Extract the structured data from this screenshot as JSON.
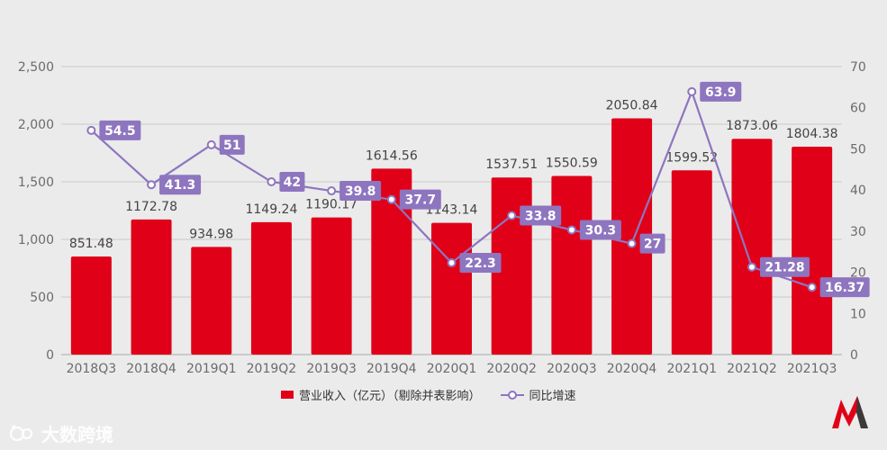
{
  "chart_data": {
    "type": "bar",
    "categories": [
      "2018Q3",
      "2018Q4",
      "2019Q1",
      "2019Q2",
      "2019Q3",
      "2019Q4",
      "2020Q1",
      "2020Q2",
      "2020Q3",
      "2020Q4",
      "2021Q1",
      "2021Q2",
      "2021Q3"
    ],
    "series": [
      {
        "name": "营业收入（亿元）（剔除并表影响）",
        "type": "bar",
        "axis": "left",
        "color": "#e00018",
        "values": [
          851.48,
          1172.78,
          934.98,
          1149.24,
          1190.17,
          1614.56,
          1143.14,
          1537.51,
          1550.59,
          2050.84,
          1599.52,
          1873.06,
          1804.38
        ],
        "labels": [
          "851.48",
          "1172.78",
          "934.98",
          "1149.24",
          "1190.17",
          "1614.56",
          "1143.14",
          "1537.51",
          "1550.59",
          "2050.84",
          "1599.52",
          "1873.06",
          "1804.38"
        ]
      },
      {
        "name": "同比增速",
        "type": "line",
        "axis": "right",
        "color": "#8e75bf",
        "values": [
          54.5,
          41.3,
          51,
          42,
          39.8,
          37.7,
          22.3,
          33.8,
          30.3,
          27,
          63.9,
          21.28,
          16.37
        ],
        "labels": [
          "54.5",
          "41.3",
          "51",
          "42",
          "39.8",
          "37.7",
          "22.3",
          "33.8",
          "30.3",
          "27",
          "63.9",
          "21.28",
          "16.37"
        ]
      }
    ],
    "left_axis": {
      "ylim": [
        0,
        2500
      ],
      "ticks": [
        "0",
        "500",
        "1,000",
        "1,500",
        "2,000",
        "2,500"
      ],
      "values": [
        0,
        500,
        1000,
        1500,
        2000,
        2500
      ]
    },
    "right_axis": {
      "ylim": [
        0,
        70
      ],
      "ticks": [
        "0",
        "10",
        "20",
        "30",
        "40",
        "50",
        "60",
        "70"
      ],
      "values": [
        0,
        10,
        20,
        30,
        40,
        50,
        60,
        70
      ]
    },
    "grid": true,
    "legend_position": "bottom"
  },
  "legend": {
    "bar_label": "营业收入（亿元）（剔除并表影响）",
    "line_label": "同比增速"
  },
  "watermark": {
    "text": "大数跨境"
  },
  "colors": {
    "background": "#ebebeb",
    "bar": "#e00018",
    "line": "#8e75bf",
    "grid": "#c8c8c8"
  }
}
